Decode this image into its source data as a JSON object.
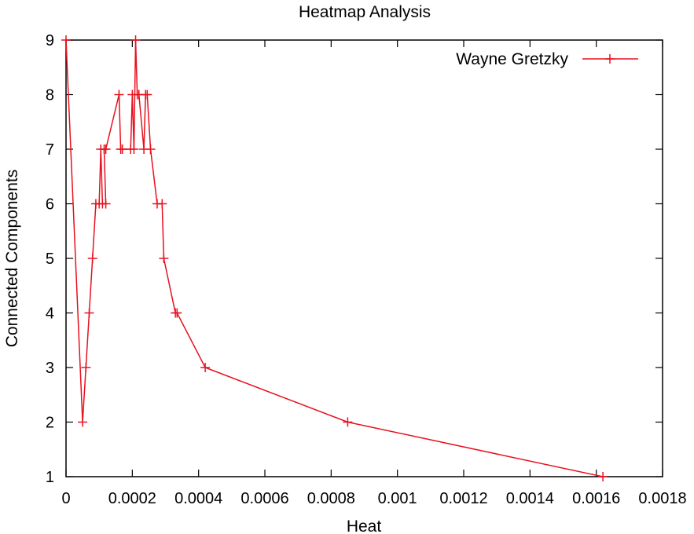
{
  "chart_data": {
    "type": "line",
    "title": "Heatmap Analysis",
    "xlabel": "Heat",
    "ylabel": "Connected Components",
    "xlim": [
      0,
      0.0018
    ],
    "ylim": [
      1,
      9
    ],
    "x_ticks": [
      {
        "value": 0,
        "label": "0"
      },
      {
        "value": 0.0002,
        "label": "0.0002"
      },
      {
        "value": 0.0004,
        "label": "0.0004"
      },
      {
        "value": 0.0006,
        "label": "0.0006"
      },
      {
        "value": 0.0008,
        "label": "0.0008"
      },
      {
        "value": 0.001,
        "label": "0.001"
      },
      {
        "value": 0.0012,
        "label": "0.0012"
      },
      {
        "value": 0.0014,
        "label": "0.0014"
      },
      {
        "value": 0.0016,
        "label": "0.0016"
      },
      {
        "value": 0.0018,
        "label": "0.0018"
      }
    ],
    "y_ticks": [
      {
        "value": 1,
        "label": "1"
      },
      {
        "value": 2,
        "label": "2"
      },
      {
        "value": 3,
        "label": "3"
      },
      {
        "value": 4,
        "label": "4"
      },
      {
        "value": 5,
        "label": "5"
      },
      {
        "value": 6,
        "label": "6"
      },
      {
        "value": 7,
        "label": "7"
      },
      {
        "value": 8,
        "label": "8"
      },
      {
        "value": 9,
        "label": "9"
      }
    ],
    "grid": false,
    "legend_position": "top-right",
    "series": [
      {
        "name": "Wayne Gretzky",
        "color": "#e8101e",
        "marker": "plus",
        "points": [
          [
            0.0,
            9
          ],
          [
            5e-05,
            2
          ],
          [
            6e-05,
            3
          ],
          [
            7e-05,
            4
          ],
          [
            8e-05,
            5
          ],
          [
            9e-05,
            6
          ],
          [
            0.0001,
            6
          ],
          [
            0.000105,
            7
          ],
          [
            0.00011,
            6
          ],
          [
            0.00012,
            6
          ],
          [
            0.000115,
            7
          ],
          [
            0.00012,
            7
          ],
          [
            0.00016,
            8
          ],
          [
            0.000165,
            7
          ],
          [
            0.00017,
            7
          ],
          [
            0.000195,
            7
          ],
          [
            0.0002,
            8
          ],
          [
            0.000205,
            7
          ],
          [
            0.00021,
            9
          ],
          [
            0.000215,
            8
          ],
          [
            0.00022,
            8
          ],
          [
            0.000235,
            7
          ],
          [
            0.00024,
            8
          ],
          [
            0.000245,
            8
          ],
          [
            0.000255,
            7
          ],
          [
            0.000275,
            6
          ],
          [
            0.00029,
            6
          ],
          [
            0.000295,
            5
          ],
          [
            0.00033,
            4
          ],
          [
            0.000335,
            4
          ],
          [
            0.00042,
            3
          ],
          [
            0.00085,
            2
          ],
          [
            0.00162,
            1
          ]
        ]
      }
    ]
  }
}
